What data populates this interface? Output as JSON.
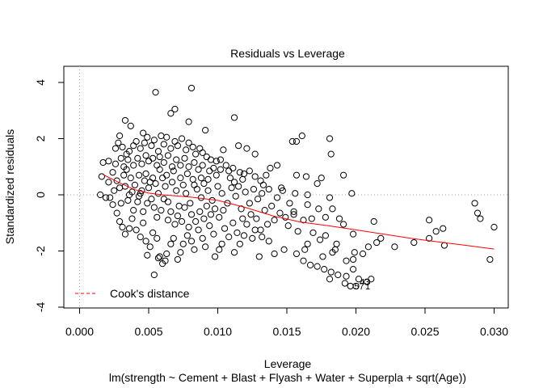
{
  "chart_data": {
    "type": "scatter",
    "title": "Residuals vs Leverage",
    "xlabel": "Leverage",
    "ylabel": "Standardized residuals",
    "subtitle": "lm(strength ~ Cement + Blast + Flyash + Water + Superpla + sqrt(Age))",
    "xlim": [
      0.0,
      0.03
    ],
    "ylim": [
      -4,
      4
    ],
    "x_ticks": [
      "0.000",
      "0.005",
      "0.010",
      "0.015",
      "0.020",
      "0.025",
      "0.030"
    ],
    "y_ticks": [
      "-4",
      "-2",
      "0",
      "2",
      "4"
    ],
    "reference_lines": {
      "horizontal_y": 0,
      "vertical_x": 0,
      "style": "dotted"
    },
    "legend": {
      "position": "bottom-left",
      "entries": [
        {
          "label": "Cook's distance",
          "color": "#ff0000",
          "style": "dashed"
        }
      ]
    },
    "smooth_line": {
      "color": "#ff0000",
      "x": [
        0.0017,
        0.003,
        0.004,
        0.005,
        0.006,
        0.008,
        0.01,
        0.012,
        0.014,
        0.016,
        0.018,
        0.02,
        0.022,
        0.024,
        0.026,
        0.028,
        0.03
      ],
      "y": [
        0.72,
        0.4,
        0.18,
        0.06,
        0.0,
        -0.08,
        -0.2,
        -0.45,
        -0.75,
        -0.97,
        -1.1,
        -1.25,
        -1.4,
        -1.55,
        -1.68,
        -1.8,
        -1.93
      ]
    },
    "labeled_points": [
      {
        "label": "43",
        "x": 0.0201,
        "y": -3.1
      },
      {
        "label": "57",
        "x": 0.0197,
        "y": -3.25
      },
      {
        "label": "1",
        "x": 0.0205,
        "y": -3.25
      }
    ],
    "points": [
      [
        0.0055,
        3.65
      ],
      [
        0.0081,
        3.8
      ],
      [
        0.0069,
        3.05
      ],
      [
        0.0066,
        2.9
      ],
      [
        0.0033,
        2.65
      ],
      [
        0.0079,
        2.6
      ],
      [
        0.0112,
        2.75
      ],
      [
        0.0091,
        2.3
      ],
      [
        0.0037,
        2.45
      ],
      [
        0.0029,
        2.1
      ],
      [
        0.0046,
        2.2
      ],
      [
        0.0161,
        2.1
      ],
      [
        0.0154,
        1.9
      ],
      [
        0.0181,
        2.0
      ],
      [
        0.0157,
        1.9
      ],
      [
        0.0182,
        1.45
      ],
      [
        0.0104,
        1.6
      ],
      [
        0.0115,
        1.75
      ],
      [
        0.0121,
        1.65
      ],
      [
        0.0102,
        1.25
      ],
      [
        0.0127,
        1.45
      ],
      [
        0.0143,
        1.05
      ],
      [
        0.0138,
        0.95
      ],
      [
        0.0157,
        0.7
      ],
      [
        0.0164,
        0.65
      ],
      [
        0.0175,
        0.6
      ],
      [
        0.0172,
        0.4
      ],
      [
        0.0191,
        0.7
      ],
      [
        0.0133,
        0.35
      ],
      [
        0.0146,
        0.25
      ],
      [
        0.0156,
        0.05
      ],
      [
        0.0165,
        0.0
      ],
      [
        0.0181,
        -0.1
      ],
      [
        0.0197,
        0.05
      ],
      [
        0.0213,
        -0.95
      ],
      [
        0.0165,
        -0.35
      ],
      [
        0.0173,
        -0.5
      ],
      [
        0.0183,
        -0.5
      ],
      [
        0.0155,
        -0.7
      ],
      [
        0.0178,
        -0.8
      ],
      [
        0.0188,
        -0.85
      ],
      [
        0.0191,
        -1.05
      ],
      [
        0.0168,
        -0.85
      ],
      [
        0.0162,
        -0.9
      ],
      [
        0.0155,
        -0.6
      ],
      [
        0.0149,
        -0.8
      ],
      [
        0.0141,
        -0.9
      ],
      [
        0.0169,
        -1.35
      ],
      [
        0.0178,
        -1.45
      ],
      [
        0.0198,
        -1.4
      ],
      [
        0.0165,
        -1.75
      ],
      [
        0.0186,
        -1.75
      ],
      [
        0.0174,
        -1.6
      ],
      [
        0.0185,
        -1.95
      ],
      [
        0.0199,
        -2.05
      ],
      [
        0.0205,
        -2.1
      ],
      [
        0.0215,
        -1.7
      ],
      [
        0.0209,
        -1.85
      ],
      [
        0.0148,
        -1.95
      ],
      [
        0.0137,
        -1.65
      ],
      [
        0.0125,
        -1.55
      ],
      [
        0.013,
        -2.2
      ],
      [
        0.0141,
        -2.1
      ],
      [
        0.0157,
        -2.1
      ],
      [
        0.0162,
        -2.35
      ],
      [
        0.0167,
        -2.5
      ],
      [
        0.0172,
        -2.55
      ],
      [
        0.0177,
        -2.65
      ],
      [
        0.0182,
        -2.75
      ],
      [
        0.0187,
        -2.85
      ],
      [
        0.0193,
        -2.9
      ],
      [
        0.0198,
        -2.65
      ],
      [
        0.0202,
        -3.0
      ],
      [
        0.0192,
        -3.15
      ],
      [
        0.0196,
        -3.25
      ],
      [
        0.02,
        -3.25
      ],
      [
        0.0211,
        -3.0
      ],
      [
        0.0208,
        -3.1
      ],
      [
        0.0181,
        -3.0
      ],
      [
        0.0198,
        -2.3
      ],
      [
        0.0242,
        -1.7
      ],
      [
        0.0253,
        -0.9
      ],
      [
        0.0258,
        -1.3
      ],
      [
        0.0263,
        -1.2
      ],
      [
        0.0264,
        -1.8
      ],
      [
        0.0286,
        -0.3
      ],
      [
        0.0288,
        -0.65
      ],
      [
        0.029,
        -0.85
      ],
      [
        0.03,
        -1.15
      ],
      [
        0.0297,
        -2.3
      ],
      [
        0.0253,
        -1.55
      ],
      [
        0.0228,
        -1.85
      ],
      [
        0.0218,
        -1.55
      ],
      [
        0.0163,
        -1.95
      ],
      [
        0.0176,
        -2.2
      ],
      [
        0.0183,
        -2.05
      ],
      [
        0.0193,
        -2.35
      ],
      [
        0.0021,
        1.2
      ],
      [
        0.0017,
        1.15
      ],
      [
        0.0016,
        0.65
      ],
      [
        0.0015,
        0.0
      ],
      [
        0.0019,
        -0.1
      ],
      [
        0.0021,
        0.45
      ],
      [
        0.0024,
        0.8
      ],
      [
        0.0026,
        1.65
      ],
      [
        0.0028,
        1.85
      ],
      [
        0.0031,
        1.7
      ],
      [
        0.0034,
        1.45
      ],
      [
        0.0036,
        1.55
      ],
      [
        0.0039,
        1.75
      ],
      [
        0.0041,
        1.9
      ],
      [
        0.0044,
        1.65
      ],
      [
        0.0047,
        1.85
      ],
      [
        0.0049,
        2.05
      ],
      [
        0.0052,
        1.75
      ],
      [
        0.0054,
        1.95
      ],
      [
        0.0057,
        1.55
      ],
      [
        0.0059,
        2.1
      ],
      [
        0.0061,
        1.8
      ],
      [
        0.0063,
        2.05
      ],
      [
        0.0066,
        1.65
      ],
      [
        0.0069,
        1.9
      ],
      [
        0.0071,
        1.75
      ],
      [
        0.0074,
        2.0
      ],
      [
        0.0077,
        1.6
      ],
      [
        0.0079,
        1.85
      ],
      [
        0.0082,
        1.7
      ],
      [
        0.0084,
        1.45
      ],
      [
        0.0087,
        1.65
      ],
      [
        0.0089,
        1.5
      ],
      [
        0.0092,
        1.35
      ],
      [
        0.0095,
        1.25
      ],
      [
        0.0099,
        1.2
      ],
      [
        0.0106,
        1.05
      ],
      [
        0.0108,
        0.85
      ],
      [
        0.0111,
        0.95
      ],
      [
        0.0116,
        0.8
      ],
      [
        0.0119,
        0.75
      ],
      [
        0.0123,
        0.85
      ],
      [
        0.0127,
        0.65
      ],
      [
        0.0131,
        0.5
      ],
      [
        0.0135,
        0.7
      ],
      [
        0.0024,
        -0.35
      ],
      [
        0.0027,
        -0.65
      ],
      [
        0.0029,
        -0.95
      ],
      [
        0.0031,
        -1.15
      ],
      [
        0.0033,
        -1.4
      ],
      [
        0.0036,
        -1.2
      ],
      [
        0.0038,
        -0.85
      ],
      [
        0.0041,
        -1.25
      ],
      [
        0.0044,
        -1.5
      ],
      [
        0.0046,
        -1.0
      ],
      [
        0.0048,
        -1.65
      ],
      [
        0.0051,
        -1.85
      ],
      [
        0.0053,
        -1.35
      ],
      [
        0.0056,
        -1.55
      ],
      [
        0.0058,
        -2.2
      ],
      [
        0.006,
        -2.45
      ],
      [
        0.0063,
        -2.1
      ],
      [
        0.0066,
        -1.75
      ],
      [
        0.0068,
        -1.55
      ],
      [
        0.0071,
        -2.3
      ],
      [
        0.0073,
        -2.05
      ],
      [
        0.0075,
        -1.75
      ],
      [
        0.0078,
        -1.45
      ],
      [
        0.0081,
        -1.65
      ],
      [
        0.0083,
        -1.95
      ],
      [
        0.0086,
        -1.25
      ],
      [
        0.0089,
        -1.55
      ],
      [
        0.0091,
        -1.85
      ],
      [
        0.0094,
        -1.1
      ],
      [
        0.0097,
        -1.4
      ],
      [
        0.0103,
        -1.75
      ],
      [
        0.0105,
        -1.2
      ],
      [
        0.0108,
        -1.5
      ],
      [
        0.0111,
        -1.0
      ],
      [
        0.0114,
        -1.35
      ],
      [
        0.0118,
        -0.85
      ],
      [
        0.0121,
        -1.05
      ],
      [
        0.0124,
        -0.7
      ],
      [
        0.0128,
        -0.85
      ],
      [
        0.0131,
        -1.25
      ],
      [
        0.0134,
        -0.55
      ],
      [
        0.0054,
        -2.85
      ],
      [
        0.0062,
        -2.35
      ],
      [
        0.0057,
        -2.25
      ],
      [
        0.0049,
        -2.15
      ],
      [
        0.0101,
        -1.95
      ],
      [
        0.0098,
        -2.2
      ],
      [
        0.0034,
        0.9
      ],
      [
        0.0037,
        0.6
      ],
      [
        0.004,
        0.35
      ],
      [
        0.0043,
        0.7
      ],
      [
        0.0045,
        0.15
      ],
      [
        0.0047,
        0.5
      ],
      [
        0.005,
        0.25
      ],
      [
        0.0052,
        -0.15
      ],
      [
        0.0055,
        0.4
      ],
      [
        0.0057,
        0.05
      ],
      [
        0.006,
        0.6
      ],
      [
        0.0062,
        0.3
      ],
      [
        0.0064,
        -0.25
      ],
      [
        0.0067,
        0.45
      ],
      [
        0.007,
        0.15
      ],
      [
        0.0072,
        -0.4
      ],
      [
        0.0075,
        0.35
      ],
      [
        0.0077,
        0.05
      ],
      [
        0.008,
        -0.3
      ],
      [
        0.0082,
        0.55
      ],
      [
        0.0085,
        0.2
      ],
      [
        0.0088,
        -0.1
      ],
      [
        0.009,
        0.4
      ],
      [
        0.0093,
        0.15
      ],
      [
        0.0096,
        -0.2
      ],
      [
        0.01,
        0.3
      ],
      [
        0.0103,
        0.05
      ],
      [
        0.0107,
        -0.3
      ],
      [
        0.011,
        0.25
      ],
      [
        0.0113,
        -0.05
      ],
      [
        0.0117,
        -0.5
      ],
      [
        0.012,
        0.1
      ],
      [
        0.0123,
        -0.3
      ],
      [
        0.0126,
        0.2
      ],
      [
        0.0129,
        -0.15
      ],
      [
        0.0132,
        0.05
      ],
      [
        0.0033,
        0.3
      ],
      [
        0.0035,
        -0.2
      ],
      [
        0.0038,
        0.1
      ],
      [
        0.0039,
        -0.55
      ],
      [
        0.0042,
        -0.25
      ],
      [
        0.0044,
        0.05
      ],
      [
        0.0046,
        -0.6
      ],
      [
        0.0049,
        -0.3
      ],
      [
        0.0051,
        0.45
      ],
      [
        0.0054,
        -0.45
      ],
      [
        0.0056,
        -0.8
      ],
      [
        0.0059,
        -0.55
      ],
      [
        0.0061,
        -0.15
      ],
      [
        0.0064,
        -0.9
      ],
      [
        0.0066,
        -0.6
      ],
      [
        0.0069,
        -1.05
      ],
      [
        0.0071,
        -0.75
      ],
      [
        0.0074,
        -0.95
      ],
      [
        0.0076,
        -0.45
      ],
      [
        0.0079,
        -1.15
      ],
      [
        0.0081,
        -0.7
      ],
      [
        0.0084,
        -0.95
      ],
      [
        0.0087,
        -0.6
      ],
      [
        0.009,
        -0.85
      ],
      [
        0.0092,
        -0.4
      ],
      [
        0.0095,
        -0.7
      ],
      [
        0.0098,
        -0.5
      ],
      [
        0.0101,
        -0.8
      ],
      [
        0.0104,
        -0.55
      ],
      [
        0.0025,
        0.15
      ],
      [
        0.0027,
        0.5
      ],
      [
        0.0029,
        0.25
      ],
      [
        0.003,
        -0.3
      ],
      [
        0.0032,
        0.7
      ],
      [
        0.0022,
        -0.1
      ],
      [
        0.0026,
        1.1
      ],
      [
        0.003,
        1.3
      ],
      [
        0.0032,
        1.0
      ],
      [
        0.0035,
        1.25
      ],
      [
        0.0039,
        1.05
      ],
      [
        0.0042,
        1.3
      ],
      [
        0.0045,
        1.1
      ],
      [
        0.0048,
        1.4
      ],
      [
        0.005,
        1.2
      ],
      [
        0.0053,
        1.3
      ],
      [
        0.0056,
        1.05
      ],
      [
        0.0058,
        1.35
      ],
      [
        0.0061,
        1.15
      ],
      [
        0.0064,
        1.4
      ],
      [
        0.0067,
        1.0
      ],
      [
        0.007,
        1.25
      ],
      [
        0.0073,
        1.05
      ],
      [
        0.0076,
        1.3
      ],
      [
        0.0079,
        1.0
      ],
      [
        0.0083,
        1.15
      ],
      [
        0.0086,
        0.9
      ],
      [
        0.0089,
        1.05
      ],
      [
        0.0094,
        0.85
      ],
      [
        0.0097,
        0.95
      ],
      [
        0.0099,
        0.7
      ],
      [
        0.0102,
        0.9
      ],
      [
        0.0109,
        0.6
      ],
      [
        0.0112,
        0.45
      ],
      [
        0.0036,
        0.0
      ],
      [
        0.0043,
        -0.05
      ],
      [
        0.0048,
        0.75
      ],
      [
        0.0053,
        0.6
      ],
      [
        0.0058,
        0.9
      ],
      [
        0.0063,
        0.7
      ],
      [
        0.0068,
        0.85
      ],
      [
        0.0073,
        0.6
      ],
      [
        0.0078,
        0.75
      ],
      [
        0.0083,
        0.35
      ],
      [
        0.0088,
        0.6
      ],
      [
        0.0093,
        0.55
      ],
      [
        0.0115,
        0.3
      ],
      [
        0.0118,
        0.55
      ],
      [
        0.0137,
        0.2
      ],
      [
        0.0143,
        -0.1
      ],
      [
        0.0147,
        0.15
      ],
      [
        0.0152,
        -0.3
      ],
      [
        0.0139,
        -0.4
      ],
      [
        0.0145,
        -0.65
      ],
      [
        0.0151,
        -1.1
      ],
      [
        0.0158,
        -1.3
      ],
      [
        0.0136,
        -1.05
      ],
      [
        0.0132,
        -1.5
      ],
      [
        0.0127,
        -1.25
      ],
      [
        0.0119,
        -1.45
      ],
      [
        0.0116,
        -1.75
      ],
      [
        0.0112,
        -2.05
      ]
    ]
  }
}
